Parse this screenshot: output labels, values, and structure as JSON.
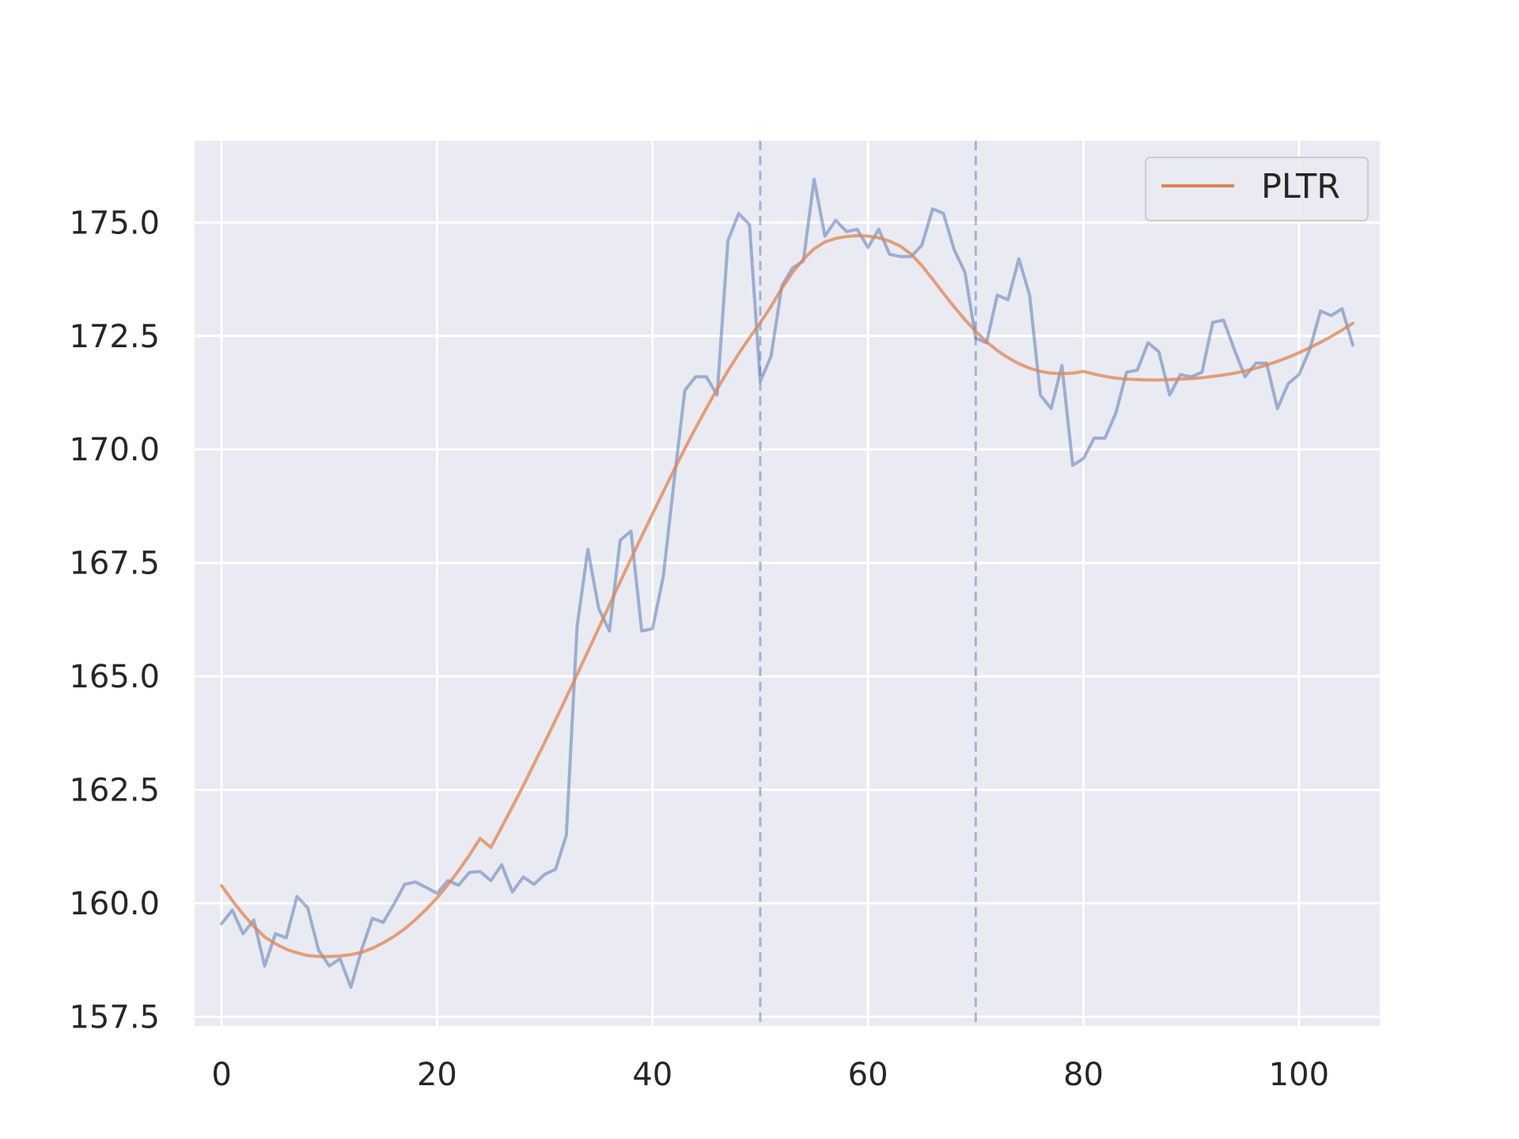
{
  "chart_data": {
    "type": "line",
    "title": "",
    "xlabel": "",
    "ylabel": "",
    "xlim": [
      -2.5,
      107.5
    ],
    "ylim": [
      157.3,
      176.8
    ],
    "x_ticks": [
      0,
      20,
      40,
      60,
      80,
      100
    ],
    "x_tick_labels": [
      "0",
      "20",
      "40",
      "60",
      "80",
      "100"
    ],
    "y_ticks": [
      157.5,
      160.0,
      162.5,
      165.0,
      167.5,
      170.0,
      172.5,
      175.0
    ],
    "y_tick_labels": [
      "157.5",
      "160.0",
      "162.5",
      "165.0",
      "167.5",
      "170.0",
      "172.5",
      "175.0"
    ],
    "grid": true,
    "vlines": [
      50,
      70
    ],
    "legend": {
      "placement": "top-right",
      "entries": [
        "PLTR"
      ]
    },
    "colors": {
      "background": "#eaeaf2",
      "grid": "#ffffff",
      "raw": "#4c72b0",
      "smooth": "#dd8452",
      "vline": "#4c72b0",
      "text": "#262626"
    },
    "series": [
      {
        "key": "raw",
        "values": [
          159.55,
          159.85,
          159.33,
          159.63,
          158.62,
          159.33,
          159.24,
          160.15,
          159.9,
          158.97,
          158.62,
          158.78,
          158.15,
          158.98,
          159.67,
          159.58,
          159.98,
          160.42,
          160.47,
          160.35,
          160.22,
          160.5,
          160.4,
          160.68,
          160.7,
          160.5,
          160.85,
          160.25,
          160.58,
          160.42,
          160.64,
          160.75,
          161.5,
          166.1,
          167.8,
          166.5,
          166.0,
          168.0,
          168.2,
          166.0,
          166.05,
          167.2,
          169.3,
          171.3,
          171.6,
          171.6,
          171.2,
          174.6,
          175.2,
          174.95,
          171.5,
          172.05,
          173.6,
          174.0,
          174.15,
          175.95,
          174.7,
          175.05,
          174.8,
          174.85,
          174.45,
          174.85,
          174.3,
          174.25,
          174.25,
          174.5,
          175.3,
          175.2,
          174.4,
          173.9,
          172.45,
          172.35,
          173.4,
          173.3,
          174.2,
          173.4,
          171.2,
          170.9,
          171.85,
          169.65,
          169.8,
          170.25,
          170.25,
          170.8,
          171.7,
          171.75,
          172.35,
          172.15,
          171.2,
          171.65,
          171.6,
          171.7,
          172.8,
          172.85,
          172.2,
          171.6,
          171.9,
          171.9,
          170.9,
          171.45,
          171.65,
          172.2,
          173.05,
          172.95,
          173.1,
          172.3
        ]
      },
      {
        "key": "smooth",
        "name": "PLTR",
        "values": [
          160.39,
          160.06,
          159.76,
          159.49,
          159.26,
          159.11,
          158.99,
          158.91,
          158.85,
          158.83,
          158.83,
          158.84,
          158.87,
          158.92,
          159.01,
          159.13,
          159.27,
          159.44,
          159.64,
          159.87,
          160.12,
          160.41,
          160.72,
          161.06,
          161.43,
          161.23,
          161.68,
          162.13,
          162.59,
          163.07,
          163.55,
          164.04,
          164.54,
          165.04,
          165.55,
          166.06,
          166.57,
          167.08,
          167.59,
          168.09,
          168.58,
          169.07,
          169.55,
          170.02,
          170.47,
          170.91,
          171.33,
          171.73,
          172.11,
          172.46,
          172.79,
          173.15,
          173.55,
          173.9,
          174.19,
          174.42,
          174.57,
          174.65,
          174.69,
          174.71,
          174.7,
          174.66,
          174.59,
          174.48,
          174.3,
          174.05,
          173.75,
          173.44,
          173.14,
          172.86,
          172.6,
          172.37,
          172.18,
          172.02,
          171.89,
          171.79,
          171.72,
          171.68,
          171.67,
          171.68,
          171.72,
          171.66,
          171.61,
          171.57,
          171.55,
          171.54,
          171.53,
          171.53,
          171.54,
          171.55,
          171.56,
          171.58,
          171.61,
          171.64,
          171.68,
          171.73,
          171.79,
          171.86,
          171.94,
          172.03,
          172.13,
          172.24,
          172.36,
          172.49,
          172.63,
          172.78
        ]
      }
    ]
  }
}
